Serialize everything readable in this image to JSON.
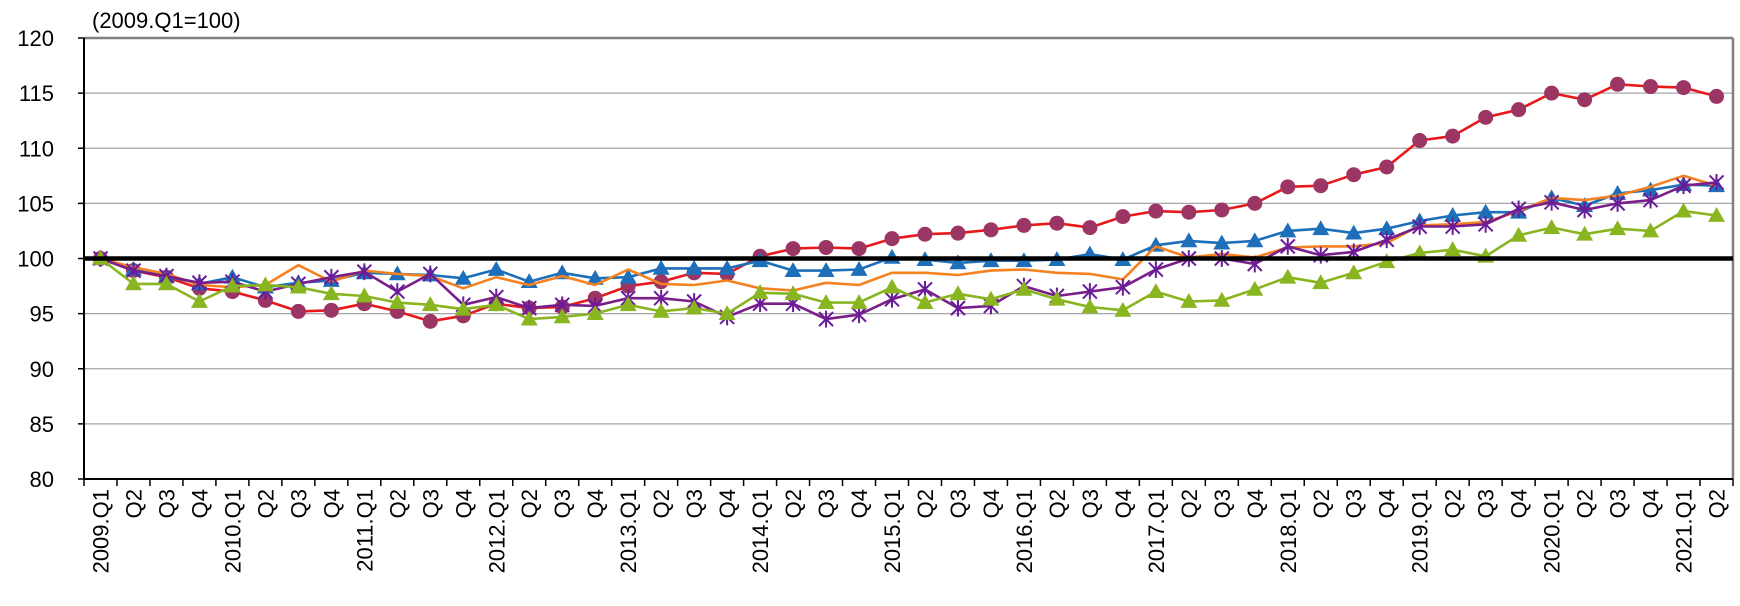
{
  "chart_data": {
    "type": "line",
    "title": "",
    "unit_note": "(2009.Q1=100)",
    "xlabel": "",
    "ylabel": "",
    "ylim": [
      80,
      120
    ],
    "yticks": [
      80,
      85,
      90,
      95,
      100,
      105,
      110,
      115,
      120
    ],
    "grid": true,
    "legend": "none",
    "baseline": 100,
    "x": [
      "2009.Q1",
      "Q2",
      "Q3",
      "Q4",
      "2010.Q1",
      "Q2",
      "Q3",
      "Q4",
      "2011.Q1",
      "Q2",
      "Q3",
      "Q4",
      "2012.Q1",
      "Q2",
      "Q3",
      "Q4",
      "2013.Q1",
      "Q2",
      "Q3",
      "Q4",
      "2014.Q1",
      "Q2",
      "Q3",
      "Q4",
      "2015.Q1",
      "Q2",
      "Q3",
      "Q4",
      "2016.Q1",
      "Q2",
      "Q3",
      "Q4",
      "2017.Q1",
      "Q2",
      "Q3",
      "Q4",
      "2018.Q1",
      "Q2",
      "Q3",
      "Q4",
      "2019.Q1",
      "Q2",
      "Q3",
      "Q4",
      "2020.Q1",
      "Q2",
      "Q3",
      "Q4",
      "2021.Q1",
      "Q2"
    ],
    "series": [
      {
        "color": "#e8191c",
        "marker": "circle",
        "marker_color": "#9b3564",
        "values": [
          100,
          98.9,
          98.3,
          97.3,
          97.0,
          96.2,
          95.2,
          95.3,
          95.9,
          95.2,
          94.3,
          94.8,
          95.9,
          95.5,
          95.6,
          96.4,
          97.5,
          97.9,
          98.7,
          98.6,
          100.2,
          100.9,
          101.0,
          100.9,
          101.8,
          102.2,
          102.3,
          102.6,
          103.0,
          103.2,
          102.8,
          103.8,
          104.3,
          104.2,
          104.4,
          105.0,
          106.5,
          106.6,
          107.6,
          108.3,
          110.7,
          111.1,
          112.8,
          113.5,
          115.0,
          114.4,
          115.8,
          115.6,
          115.5,
          114.7
        ]
      },
      {
        "color": "#1c6fb8",
        "marker": "triangle",
        "marker_color": "#1c6fb8",
        "values": [
          100,
          99.0,
          98.4,
          97.7,
          98.3,
          97.4,
          97.8,
          98.0,
          98.7,
          98.6,
          98.5,
          98.2,
          99.0,
          97.9,
          98.7,
          98.2,
          98.3,
          99.1,
          99.1,
          99.1,
          99.8,
          98.9,
          98.9,
          99.0,
          100.1,
          99.9,
          99.6,
          99.8,
          99.8,
          99.9,
          100.4,
          99.9,
          101.2,
          101.6,
          101.4,
          101.6,
          102.5,
          102.7,
          102.3,
          102.7,
          103.4,
          103.9,
          104.2,
          104.2,
          105.5,
          104.8,
          105.9,
          106.2,
          106.7,
          106.6
        ]
      },
      {
        "color": "#f58220",
        "marker": "none",
        "marker_color": "#f58220",
        "values": [
          100,
          99.2,
          98.6,
          97.6,
          97.4,
          97.6,
          99.4,
          97.9,
          98.9,
          98.6,
          98.4,
          97.3,
          98.3,
          97.6,
          98.4,
          97.6,
          99.0,
          97.7,
          97.6,
          98.0,
          97.3,
          97.1,
          97.8,
          97.6,
          98.7,
          98.7,
          98.5,
          98.9,
          99.0,
          98.7,
          98.6,
          98.1,
          101.1,
          100.1,
          100.4,
          100.1,
          101.0,
          101.1,
          101.1,
          101.4,
          103.0,
          103.1,
          103.3,
          104.3,
          105.5,
          105.3,
          105.7,
          106.5,
          107.5,
          106.6
        ]
      },
      {
        "color": "#7a1f8a",
        "marker": "asterisk",
        "marker_color": "#6a1b9a",
        "values": [
          100,
          98.9,
          98.4,
          97.8,
          97.9,
          97.0,
          97.7,
          98.3,
          98.8,
          97.0,
          98.6,
          95.8,
          96.5,
          95.5,
          95.8,
          95.7,
          96.4,
          96.4,
          96.1,
          94.7,
          95.9,
          95.9,
          94.5,
          94.9,
          96.3,
          97.2,
          95.5,
          95.7,
          97.5,
          96.6,
          97.0,
          97.4,
          99.0,
          100.0,
          100.0,
          99.5,
          101.1,
          100.3,
          100.6,
          101.7,
          102.9,
          102.9,
          103.1,
          104.5,
          105.1,
          104.4,
          105.0,
          105.3,
          106.6,
          106.9
        ]
      },
      {
        "color": "#88b520",
        "marker": "triangle",
        "marker_color": "#88b520",
        "values": [
          100,
          97.7,
          97.7,
          96.1,
          97.5,
          97.6,
          97.4,
          96.8,
          96.6,
          96.0,
          95.8,
          95.4,
          95.8,
          94.5,
          94.7,
          95.0,
          95.8,
          95.2,
          95.5,
          95.0,
          96.9,
          96.8,
          96.0,
          96.0,
          97.4,
          96.0,
          96.8,
          96.3,
          97.2,
          96.3,
          95.6,
          95.3,
          97.0,
          96.1,
          96.2,
          97.2,
          98.3,
          97.8,
          98.7,
          99.7,
          100.5,
          100.8,
          100.2,
          102.1,
          102.8,
          102.2,
          102.7,
          102.5,
          104.3,
          103.9
        ]
      }
    ]
  }
}
